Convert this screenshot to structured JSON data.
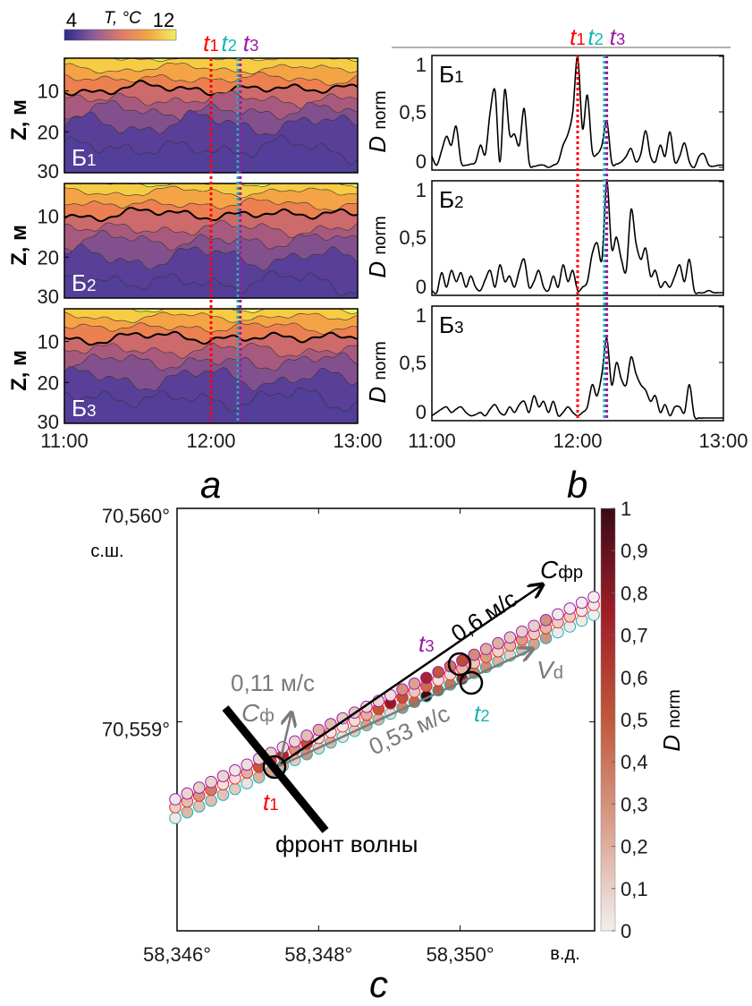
{
  "markers": {
    "t1": {
      "var": "t",
      "sub": "1",
      "time": "12:00",
      "color": "#ff0000"
    },
    "t2": {
      "var": "t",
      "sub": "2",
      "time": "12:11",
      "color": "#1ab3b3"
    },
    "t3": {
      "var": "t",
      "sub": "3",
      "time": "12:12",
      "color": "#9a1aa8"
    }
  },
  "panel_labels": {
    "a": "a",
    "b": "b",
    "c": "c"
  },
  "chart_data": [
    {
      "type": "heatmap",
      "panel": "a",
      "ylabel": "Z, м",
      "colorbar": {
        "label": "T, °C",
        "min": "4",
        "max": "12",
        "colors": [
          "#2a2a8c",
          "#8a5a9a",
          "#e0786a",
          "#f4a444",
          "#f0f060"
        ]
      },
      "x_ticks": [
        "11:00",
        "12:00",
        "13:00"
      ],
      "xlim": [
        "11:00",
        "13:00"
      ],
      "y_ticks": [
        "10",
        "20",
        "30"
      ],
      "ylim": [
        2,
        30
      ],
      "band_colors": [
        "#eef25c",
        "#f6cc44",
        "#f4a444",
        "#ec8050",
        "#cc6a6c",
        "#a85a7e",
        "#82508c",
        "#5a3f98",
        "#533e99"
      ],
      "subplots": [
        {
          "label": "Б",
          "sub": "1",
          "isotherm_depths_m": [
            2,
            4.5,
            7,
            9.5,
            12,
            15,
            18,
            24
          ]
        },
        {
          "label": "Б",
          "sub": "2",
          "isotherm_depths_m": [
            2,
            4,
            7,
            9.5,
            13,
            16,
            20,
            26
          ]
        },
        {
          "label": "Б",
          "sub": "3",
          "isotherm_depths_m": [
            2,
            4,
            6.5,
            9,
            12,
            15,
            19,
            24
          ]
        }
      ],
      "bold_isotherm_index": 3
    },
    {
      "type": "line",
      "panel": "b",
      "ylabel": "D",
      "ylabel_sub": "norm",
      "y_ticks": [
        "0",
        "0,5",
        "1"
      ],
      "ylim": [
        0,
        1
      ],
      "x_ticks": [
        "11:00",
        "12:00",
        "13:00"
      ],
      "xlim": [
        "11:00",
        "13:00"
      ],
      "x": [
        "11:00",
        "11:02",
        "11:04",
        "11:06",
        "11:08",
        "11:10",
        "11:12",
        "11:14",
        "11:16",
        "11:18",
        "11:20",
        "11:22",
        "11:24",
        "11:26",
        "11:28",
        "11:30",
        "11:32",
        "11:34",
        "11:36",
        "11:38",
        "11:40",
        "11:42",
        "11:44",
        "11:46",
        "11:48",
        "11:50",
        "11:52",
        "11:54",
        "11:56",
        "11:58",
        "12:00",
        "12:02",
        "12:04",
        "12:06",
        "12:08",
        "12:10",
        "12:12",
        "12:14",
        "12:16",
        "12:18",
        "12:20",
        "12:22",
        "12:24",
        "12:26",
        "12:28",
        "12:30",
        "12:32",
        "12:34",
        "12:36",
        "12:38",
        "12:40",
        "12:42",
        "12:44",
        "12:46",
        "12:48",
        "12:50",
        "12:52",
        "12:54",
        "12:56",
        "12:58",
        "13:00"
      ],
      "series": [
        {
          "label": "Б",
          "sub": "1",
          "values": [
            0.1,
            0.02,
            0.15,
            0.28,
            0.2,
            0.37,
            0.05,
            0.02,
            0.03,
            0.05,
            0.2,
            0.12,
            0.5,
            0.69,
            0.05,
            0.7,
            0.3,
            0.3,
            0.2,
            0.53,
            0.05,
            0.01,
            0.02,
            0.02,
            0.0,
            0.02,
            0.05,
            0.2,
            0.3,
            0.5,
            1.0,
            0.35,
            0.65,
            0.15,
            0.12,
            0.2,
            0.42,
            0.05,
            0.03,
            0.05,
            0.1,
            0.17,
            0.05,
            0.12,
            0.33,
            0.1,
            0.05,
            0.2,
            0.1,
            0.32,
            0.05,
            0.1,
            0.22,
            0.05,
            0.0,
            0.1,
            0.12,
            0.02,
            0.01,
            0.02,
            0.02
          ]
        },
        {
          "label": "Б",
          "sub": "2",
          "values": [
            0.02,
            0.0,
            0.18,
            0.05,
            0.2,
            0.1,
            0.18,
            0.05,
            0.15,
            0.05,
            0.02,
            0.12,
            0.2,
            0.05,
            0.25,
            0.1,
            0.15,
            0.05,
            0.2,
            0.3,
            0.05,
            0.1,
            0.2,
            0.05,
            0.02,
            0.15,
            0.05,
            0.25,
            0.1,
            0.2,
            0.02,
            0.05,
            0.1,
            0.35,
            0.45,
            0.3,
            1.0,
            0.4,
            0.5,
            0.3,
            0.2,
            0.75,
            0.45,
            0.3,
            0.4,
            0.15,
            0.2,
            0.05,
            0.1,
            0.05,
            0.15,
            0.25,
            0.1,
            0.3,
            0.02,
            0.0,
            0.0,
            0.02,
            0.0,
            0.0,
            0.0
          ]
        },
        {
          "label": "Б",
          "sub": "3",
          "values": [
            0.02,
            0.05,
            0.08,
            0.1,
            0.05,
            0.08,
            0.1,
            0.05,
            0.02,
            0.03,
            0.05,
            0.02,
            0.08,
            0.12,
            0.05,
            0.03,
            0.1,
            0.05,
            0.12,
            0.15,
            0.05,
            0.2,
            0.1,
            0.15,
            0.05,
            0.15,
            0.02,
            0.05,
            0.1,
            0.05,
            0.02,
            0.05,
            0.1,
            0.3,
            0.2,
            0.4,
            0.72,
            0.3,
            0.5,
            0.35,
            0.3,
            0.55,
            0.4,
            0.3,
            0.25,
            0.15,
            0.2,
            0.05,
            0.12,
            0.02,
            0.1,
            0.1,
            0.05,
            0.3,
            0.02,
            0.0,
            0.0,
            0.0,
            0.0,
            0.0,
            0.0
          ]
        }
      ]
    },
    {
      "type": "scatter",
      "panel": "c",
      "x_ticks": [
        "58,346°",
        "58,348°",
        "58,350°"
      ],
      "x_unit": "в.д.",
      "xlim": [
        58.346,
        58.3519
      ],
      "y_ticks": [
        "70,560°",
        "70,559°"
      ],
      "y_unit": "с.ш.",
      "ylim": [
        70.55802,
        70.56
      ],
      "colorbar": {
        "label": "D",
        "label_sub": "norm",
        "ticks": [
          "0",
          "0,1",
          "0,2",
          "0,3",
          "0,4",
          "0,5",
          "0,6",
          "0,7",
          "0,8",
          "0,9",
          "1"
        ],
        "colors": [
          "#f2eeee",
          "#d8a08c",
          "#c0583c",
          "#a01e28",
          "#3a0a18"
        ]
      },
      "tracks": [
        {
          "edge_color": "#9a1aa8",
          "series_index": 2
        },
        {
          "edge_color": "#ff2020",
          "series_index": 0
        },
        {
          "edge_color": "#1ab3b3",
          "series_index": 1
        }
      ],
      "annotations": {
        "front_label": "фронт волны",
        "c_front_label": "C",
        "c_front_sub": "фр",
        "c_front_speed": "0,6 м/с",
        "c_phase_label": "C",
        "c_phase_sub": "ф",
        "c_phase_speed": "0,11 м/с",
        "vd_label": "V",
        "vd_sub": "d",
        "vd_speed": "0,53 м/с"
      }
    }
  ]
}
